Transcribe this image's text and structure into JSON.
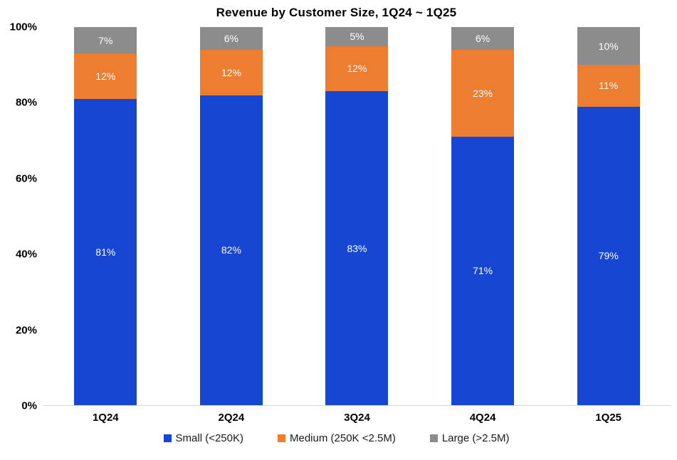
{
  "title": "Revenue by Customer Size, 1Q24 ~ 1Q25",
  "chart_data": {
    "type": "bar",
    "stacked": true,
    "title": "Revenue by Customer Size, 1Q24 ~ 1Q25",
    "categories": [
      "1Q24",
      "2Q24",
      "3Q24",
      "4Q24",
      "1Q25"
    ],
    "series": [
      {
        "name": "Small (<250K)",
        "color": "#1646d2",
        "values": [
          81,
          82,
          83,
          71,
          79
        ]
      },
      {
        "name": "Medium (250K <2.5M)",
        "color": "#ed7d31",
        "values": [
          12,
          12,
          12,
          23,
          11
        ]
      },
      {
        "name": "Large (>2.5M)",
        "color": "#8c8c8c",
        "values": [
          7,
          6,
          5,
          6,
          10
        ]
      }
    ],
    "value_label_suffix": "%",
    "y_ticks": [
      0,
      20,
      40,
      60,
      80,
      100
    ],
    "y_tick_suffix": "%",
    "ylim": [
      0,
      100
    ],
    "grid": false,
    "legend_position": "bottom"
  }
}
